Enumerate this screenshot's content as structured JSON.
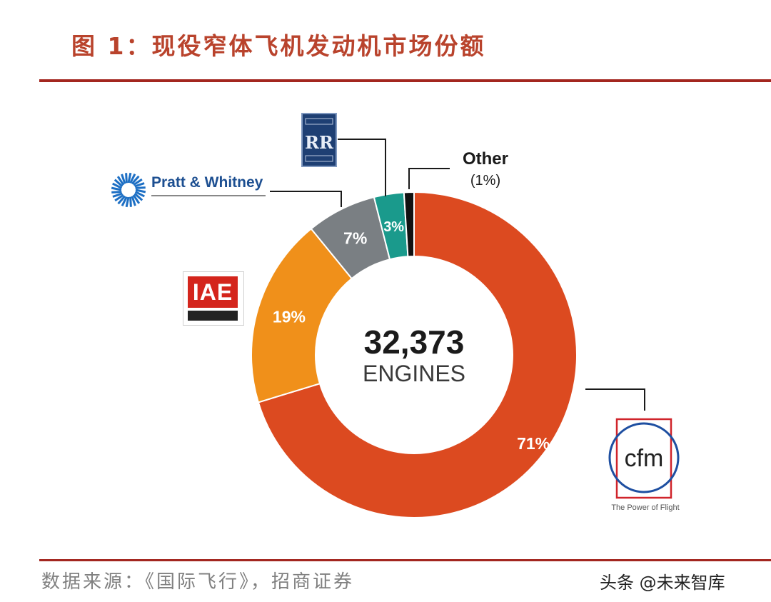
{
  "figure_title": "图 1：现役窄体飞机发动机市场份额",
  "source": "数据来源：《国际飞行》，招商证券",
  "watermark": "头条 @未来智库",
  "logos": {
    "pratt_whitney": "Pratt & Whitney",
    "iae": "IAE",
    "rolls_royce": "RR",
    "cfm": "cfm",
    "cfm_tagline": "The Power of Flight"
  },
  "colors": {
    "title": "#b9432c",
    "rule": "#a3261f",
    "cfm": "#dc4a20",
    "iae": "#f0901a",
    "pratt_whitney": "#7a7f83",
    "rolls_royce": "#1a9a8c",
    "other": "#111111"
  },
  "chart_data": {
    "type": "pie",
    "donut": true,
    "center_value": "32,373",
    "center_label": "ENGINES",
    "slices": [
      {
        "value": 71,
        "label": "71%",
        "color": "#dc4a20"
      },
      {
        "value": 19,
        "label": "19%",
        "color": "#f0901a"
      },
      {
        "value": 7,
        "label": "7%",
        "color": "#7a7f83"
      },
      {
        "value": 3,
        "label": "3%",
        "color": "#1a9a8c"
      },
      {
        "value": 1,
        "label": "",
        "color": "#111111",
        "callout_name": "Other",
        "callout_value": "(1%)"
      }
    ]
  }
}
